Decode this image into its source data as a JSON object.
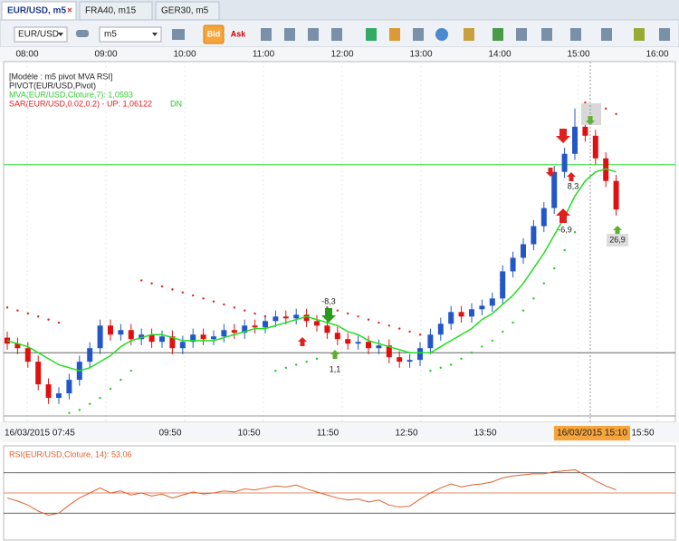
{
  "tabs": [
    "EUR/USD, m5",
    "FRA40, m15",
    "GER30, m5"
  ],
  "toolbar": {
    "symbol": "EUR/USD",
    "timeframe": "m5",
    "bid": "Bid",
    "ask": "Ask"
  },
  "top_axis": [
    "08:00",
    "09:00",
    "10:00",
    "11:00",
    "12:00",
    "13:00",
    "14:00",
    "15:00",
    "16:00"
  ],
  "legend": {
    "model": "[Modèle : m5 pivot MVA RSI]",
    "pivot": "PIVOT(EUR/USD,Pivot)",
    "mva": "MVA(EUR/USD,Cloture,7): 1,0593",
    "sar": "SAR(EUR/USD,0.02,0.2) -  UP: 1,06122",
    "sar_dn": "DN"
  },
  "chart_data": {
    "type": "candlestick",
    "ylim": [
      1.05105,
      1.0629
    ],
    "up_color": "#2357c8",
    "down_color": "#e01010",
    "open": [
      1.0538,
      1.0536,
      1.05345,
      1.053,
      1.05225,
      1.0518,
      1.05195,
      1.0524,
      1.053,
      1.05345,
      1.0542,
      1.0539,
      1.05405,
      1.05375,
      1.0539,
      1.05366,
      1.05384,
      1.05345,
      1.05366,
      1.0539,
      1.05375,
      1.05384,
      1.05405,
      1.05396,
      1.0542,
      1.05414,
      1.05435,
      1.0545,
      1.05444,
      1.05456,
      1.05435,
      1.0542,
      1.05396,
      1.05375,
      1.0536,
      1.05366,
      1.05345,
      1.05354,
      1.05315,
      1.053,
      1.05306,
      1.05345,
      1.0539,
      1.05426,
      1.05465,
      1.0545,
      1.05474,
      1.05486,
      1.0551,
      1.056,
      1.05645,
      1.0569,
      1.0575,
      1.0581,
      1.0593,
      1.0599,
      1.0608,
      1.0605,
      1.05975,
      1.059
    ],
    "high": [
      1.054,
      1.0538,
      1.05365,
      1.0532,
      1.05245,
      1.05215,
      1.0526,
      1.0532,
      1.05365,
      1.0544,
      1.0544,
      1.05425,
      1.05425,
      1.0541,
      1.0541,
      1.05404,
      1.05404,
      1.05386,
      1.0541,
      1.0541,
      1.05404,
      1.05425,
      1.05425,
      1.0544,
      1.0544,
      1.05455,
      1.0547,
      1.0547,
      1.05476,
      1.05476,
      1.05455,
      1.0544,
      1.05416,
      1.05395,
      1.05386,
      1.05386,
      1.05374,
      1.05374,
      1.05335,
      1.05326,
      1.05365,
      1.0541,
      1.05446,
      1.05485,
      1.05485,
      1.05494,
      1.05506,
      1.0553,
      1.0562,
      1.05665,
      1.0571,
      1.0577,
      1.0583,
      1.0595,
      1.0601,
      1.0614,
      1.0613,
      1.0607,
      1.05995,
      1.0592
    ],
    "low": [
      1.0534,
      1.05325,
      1.0528,
      1.05205,
      1.0516,
      1.0516,
      1.05175,
      1.0522,
      1.0528,
      1.05325,
      1.0537,
      1.0537,
      1.05355,
      1.05355,
      1.05346,
      1.05346,
      1.05325,
      1.05325,
      1.05346,
      1.05355,
      1.05355,
      1.05364,
      1.05376,
      1.05376,
      1.05394,
      1.05394,
      1.05415,
      1.05424,
      1.05424,
      1.05415,
      1.054,
      1.05376,
      1.05355,
      1.0534,
      1.0534,
      1.05325,
      1.05325,
      1.05295,
      1.0528,
      1.0528,
      1.05286,
      1.05325,
      1.0537,
      1.05406,
      1.0543,
      1.0543,
      1.05454,
      1.05466,
      1.0549,
      1.0558,
      1.05625,
      1.0567,
      1.0573,
      1.0579,
      1.0591,
      1.0597,
      1.0603,
      1.05955,
      1.0588,
      1.05785
    ],
    "close": [
      1.0536,
      1.05345,
      1.053,
      1.05225,
      1.0518,
      1.05195,
      1.0524,
      1.053,
      1.05345,
      1.0542,
      1.0539,
      1.05405,
      1.05375,
      1.0539,
      1.05366,
      1.05384,
      1.05345,
      1.05366,
      1.0539,
      1.05375,
      1.05384,
      1.05405,
      1.05396,
      1.0542,
      1.05414,
      1.05435,
      1.0545,
      1.05444,
      1.05456,
      1.05435,
      1.0542,
      1.05396,
      1.05375,
      1.0536,
      1.05366,
      1.05345,
      1.05354,
      1.05315,
      1.053,
      1.05306,
      1.05345,
      1.0539,
      1.05426,
      1.05465,
      1.0545,
      1.05474,
      1.05486,
      1.0551,
      1.056,
      1.05645,
      1.0569,
      1.0575,
      1.0581,
      1.0593,
      1.0599,
      1.0608,
      1.0605,
      1.05975,
      1.059,
      1.05805
    ],
    "mva": {
      "color": "#22dd22",
      "values": [
        1.0537,
        1.0536,
        1.0535,
        1.0533,
        1.0531,
        1.0529,
        1.0528,
        1.0527,
        1.0528,
        1.053,
        1.0532,
        1.0535,
        1.0537,
        1.0538,
        1.0539,
        1.0539,
        1.0538,
        1.0537,
        1.0537,
        1.0537,
        1.0537,
        1.0538,
        1.0539,
        1.054,
        1.0541,
        1.0541,
        1.0542,
        1.0543,
        1.0544,
        1.0545,
        1.0544,
        1.0543,
        1.0542,
        1.054,
        1.0539,
        1.0537,
        1.0536,
        1.0535,
        1.0534,
        1.0533,
        1.0533,
        1.0533,
        1.0535,
        1.0537,
        1.0539,
        1.0541,
        1.0544,
        1.0546,
        1.0549,
        1.0552,
        1.0556,
        1.0561,
        1.0566,
        1.0572,
        1.0578,
        1.0585,
        1.059,
        1.0593,
        1.0594,
        1.0593
      ]
    },
    "sar": {
      "up_color": "#e02020",
      "down_color": "#22cc22",
      "values": [
        1.0548,
        1.0547,
        1.0546,
        1.0545,
        1.0544,
        1.0543,
        1.0513,
        1.0514,
        1.0516,
        1.0518,
        1.0521,
        1.0524,
        1.0527,
        1.0557,
        1.0556,
        1.0555,
        1.0554,
        1.0553,
        1.0552,
        1.0551,
        1.055,
        1.0549,
        1.0548,
        1.0547,
        1.0546,
        1.0545,
        1.0527,
        1.0528,
        1.0529,
        1.053,
        1.0531,
        1.0548,
        1.0547,
        1.0546,
        1.0545,
        1.0544,
        1.0543,
        1.0542,
        1.0541,
        1.054,
        1.0539,
        1.0527,
        1.0528,
        1.0529,
        1.0531,
        1.0533,
        1.0535,
        1.0537,
        1.054,
        1.0543,
        1.0547,
        1.0551,
        1.0556,
        1.0561,
        1.0567,
        1.0573,
        1.0616,
        1.0615,
        1.0614,
        1.06122
      ]
    },
    "levels": [
      {
        "value": 1.05954,
        "color": "#33dd33"
      },
      {
        "value": 1.0533,
        "color": "#666666"
      },
      {
        "value": 1.0512,
        "color": "#999999"
      }
    ],
    "annotations": [
      "-8,3",
      "1,1",
      "8,3",
      "-6,9",
      "26,9"
    ],
    "x_labels": [
      "16/03/2015 07:45",
      "09:50",
      "10:50",
      "11:50",
      "12:50",
      "13:50"
    ],
    "cursor_label": "16/03/2015 15:10",
    "x_label_last": "15:50"
  },
  "rsi": {
    "label": "RSI(EUR/USD,Cloture, 14): 53,06",
    "color": "#e06030",
    "ylim": [
      5,
      95
    ],
    "levels": [
      30,
      50,
      70
    ],
    "values": [
      45,
      42,
      38,
      32,
      28,
      30,
      38,
      45,
      50,
      55,
      50,
      52,
      48,
      50,
      47,
      49,
      45,
      48,
      51,
      49,
      50,
      52,
      51,
      54,
      53,
      55,
      57,
      56,
      58,
      54,
      51,
      48,
      45,
      43,
      44,
      41,
      43,
      38,
      36,
      37,
      44,
      50,
      55,
      59,
      56,
      58,
      59,
      61,
      65,
      67,
      68,
      69,
      69,
      71,
      72,
      73,
      68,
      62,
      57,
      53.06
    ]
  }
}
